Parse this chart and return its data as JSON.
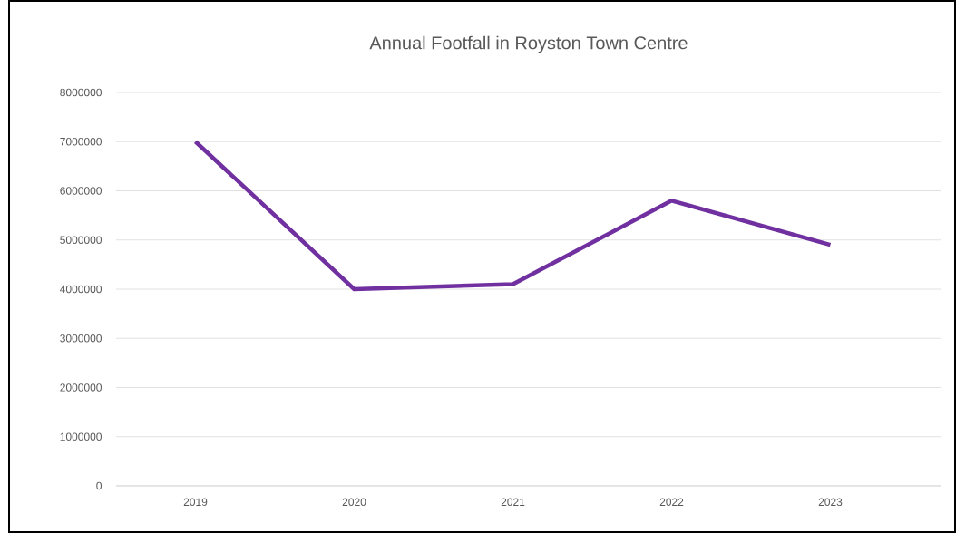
{
  "chart_data": {
    "type": "line",
    "title": "Annual Footfall in Royston Town Centre",
    "categories": [
      "2019",
      "2020",
      "2021",
      "2022",
      "2023"
    ],
    "series": [
      {
        "color": "#7030a0",
        "values": [
          7000000,
          4000000,
          4100000,
          5800000,
          4900000
        ]
      }
    ],
    "ylim": [
      0,
      8000000
    ],
    "yticks": [
      0,
      1000000,
      2000000,
      3000000,
      4000000,
      5000000,
      6000000,
      7000000,
      8000000
    ],
    "grid": "y",
    "marker": "none",
    "line_style": "solid"
  }
}
